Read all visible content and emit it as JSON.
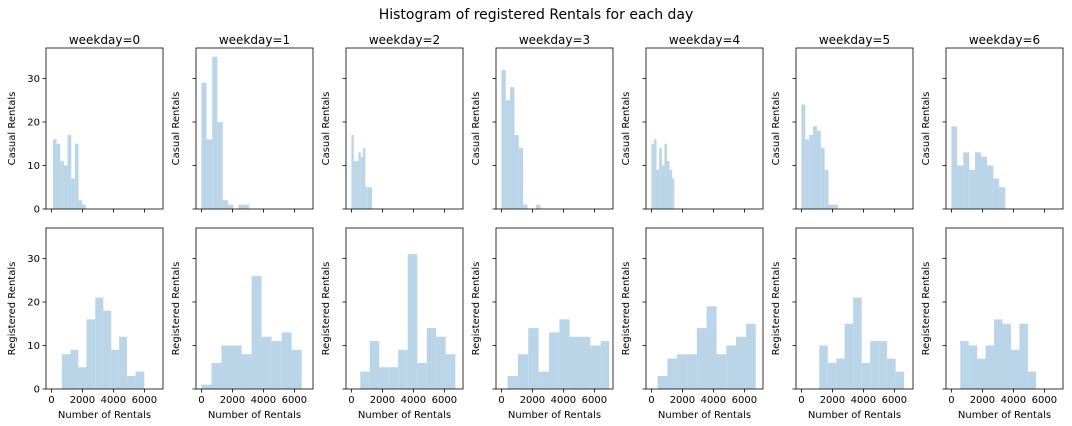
{
  "figure": {
    "title": "Histogram of registered Rentals for each day",
    "bar_color": "#bad4e8"
  },
  "chart_data": [
    {
      "type": "bar",
      "row": "casual",
      "title": "weekday=0",
      "ylabel": "Casual Rentals",
      "xlim": [
        -350,
        7200
      ],
      "ylim": [
        0,
        37
      ],
      "xticks": [
        0,
        2000,
        4000,
        6000
      ],
      "yticks": [
        0,
        10,
        20,
        30
      ],
      "bins": [
        [
          100,
          330,
          16
        ],
        [
          330,
          570,
          15
        ],
        [
          570,
          800,
          11
        ],
        [
          800,
          1040,
          10
        ],
        [
          1040,
          1280,
          17
        ],
        [
          1280,
          1510,
          7
        ],
        [
          1510,
          1750,
          15
        ],
        [
          1750,
          1990,
          2
        ],
        [
          1990,
          2220,
          1
        ]
      ]
    },
    {
      "type": "bar",
      "row": "casual",
      "title": "weekday=1",
      "ylabel": "Casual Rentals",
      "xlim": [
        -350,
        7200
      ],
      "ylim": [
        0,
        37
      ],
      "xticks": [
        0,
        2000,
        4000,
        6000
      ],
      "yticks": [
        0,
        10,
        20,
        30
      ],
      "bins": [
        [
          0,
          330,
          29
        ],
        [
          330,
          700,
          16
        ],
        [
          700,
          1030,
          35
        ],
        [
          1030,
          1380,
          20
        ],
        [
          1380,
          1710,
          2
        ],
        [
          1710,
          2060,
          1
        ],
        [
          2060,
          2390,
          0
        ],
        [
          2390,
          2740,
          1
        ],
        [
          2740,
          3080,
          1
        ]
      ]
    },
    {
      "type": "bar",
      "row": "casual",
      "title": "weekday=2",
      "ylabel": "Casual Rentals",
      "xlim": [
        -350,
        7200
      ],
      "ylim": [
        0,
        37
      ],
      "xticks": [
        0,
        2000,
        4000,
        6000
      ],
      "yticks": [
        0,
        10,
        20,
        30
      ],
      "bins": [
        [
          0,
          150,
          17
        ],
        [
          150,
          300,
          11
        ],
        [
          300,
          450,
          11
        ],
        [
          450,
          600,
          13
        ],
        [
          600,
          750,
          12
        ],
        [
          750,
          900,
          14
        ],
        [
          900,
          1050,
          5
        ],
        [
          1050,
          1200,
          5
        ],
        [
          1200,
          1330,
          5
        ]
      ]
    },
    {
      "type": "bar",
      "row": "casual",
      "title": "weekday=3",
      "ylabel": "Casual Rentals",
      "xlim": [
        -350,
        7200
      ],
      "ylim": [
        0,
        37
      ],
      "xticks": [
        0,
        2000,
        4000,
        6000
      ],
      "yticks": [
        0,
        10,
        20,
        30
      ],
      "bins": [
        [
          0,
          280,
          32
        ],
        [
          280,
          560,
          25
        ],
        [
          560,
          840,
          28
        ],
        [
          840,
          1120,
          17
        ],
        [
          1120,
          1400,
          14
        ],
        [
          1400,
          1680,
          1
        ],
        [
          1680,
          1960,
          0
        ],
        [
          1960,
          2240,
          0
        ],
        [
          2240,
          2520,
          1
        ]
      ]
    },
    {
      "type": "bar",
      "row": "casual",
      "title": "weekday=4",
      "ylabel": "Casual Rentals",
      "xlim": [
        -350,
        7200
      ],
      "ylim": [
        0,
        37
      ],
      "xticks": [
        0,
        2000,
        4000,
        6000
      ],
      "yticks": [
        0,
        10,
        20,
        30
      ],
      "bins": [
        [
          0,
          170,
          15
        ],
        [
          170,
          330,
          16
        ],
        [
          330,
          500,
          9
        ],
        [
          500,
          670,
          14
        ],
        [
          670,
          840,
          10
        ],
        [
          840,
          1000,
          15
        ],
        [
          1000,
          1170,
          11
        ],
        [
          1170,
          1340,
          9
        ],
        [
          1340,
          1480,
          7
        ]
      ]
    },
    {
      "type": "bar",
      "row": "casual",
      "title": "weekday=5",
      "ylabel": "Casual Rentals",
      "xlim": [
        -350,
        7200
      ],
      "ylim": [
        0,
        37
      ],
      "xticks": [
        0,
        2000,
        4000,
        6000
      ],
      "yticks": [
        0,
        10,
        20,
        30
      ],
      "bins": [
        [
          0,
          250,
          24
        ],
        [
          250,
          500,
          16
        ],
        [
          500,
          750,
          17
        ],
        [
          750,
          1000,
          19
        ],
        [
          1000,
          1250,
          18
        ],
        [
          1250,
          1500,
          14
        ],
        [
          1500,
          1750,
          9
        ],
        [
          1750,
          2000,
          1
        ],
        [
          2000,
          2350,
          1
        ]
      ]
    },
    {
      "type": "bar",
      "row": "casual",
      "title": "weekday=6",
      "ylabel": "Casual Rentals",
      "xlim": [
        -350,
        7200
      ],
      "ylim": [
        0,
        37
      ],
      "xticks": [
        0,
        2000,
        4000,
        6000
      ],
      "yticks": [
        0,
        10,
        20,
        30
      ],
      "bins": [
        [
          0,
          360,
          19
        ],
        [
          360,
          760,
          10
        ],
        [
          760,
          1150,
          13
        ],
        [
          1150,
          1520,
          9
        ],
        [
          1520,
          1910,
          13
        ],
        [
          1910,
          2300,
          12
        ],
        [
          2300,
          2700,
          10
        ],
        [
          2700,
          3080,
          7
        ],
        [
          3080,
          3480,
          5
        ]
      ]
    },
    {
      "type": "bar",
      "row": "registered",
      "title": "",
      "ylabel": "Registered Rentals",
      "xlabel": "Number of Rentals",
      "xlim": [
        -350,
        7200
      ],
      "ylim": [
        0,
        37
      ],
      "xticks": [
        0,
        2000,
        4000,
        6000
      ],
      "yticks": [
        0,
        10,
        20,
        30
      ],
      "bins": [
        [
          670,
          1230,
          8
        ],
        [
          1230,
          1740,
          9
        ],
        [
          1740,
          2260,
          5
        ],
        [
          2260,
          2830,
          16
        ],
        [
          2830,
          3350,
          21
        ],
        [
          3350,
          3860,
          18
        ],
        [
          3860,
          4370,
          9
        ],
        [
          4370,
          4880,
          12
        ],
        [
          4880,
          5430,
          3
        ],
        [
          5430,
          5990,
          4
        ]
      ]
    },
    {
      "type": "bar",
      "row": "registered",
      "title": "",
      "ylabel": "Registered Rentals",
      "xlabel": "Number of Rentals",
      "xlim": [
        -350,
        7200
      ],
      "ylim": [
        0,
        37
      ],
      "xticks": [
        0,
        2000,
        4000,
        6000
      ],
      "yticks": [
        0,
        10,
        20,
        30
      ],
      "bins": [
        [
          0,
          650,
          1
        ],
        [
          650,
          1290,
          6
        ],
        [
          1290,
          1940,
          10
        ],
        [
          1940,
          2590,
          10
        ],
        [
          2590,
          3240,
          8
        ],
        [
          3240,
          3880,
          26
        ],
        [
          3880,
          4530,
          12
        ],
        [
          4530,
          5180,
          11
        ],
        [
          5180,
          5820,
          13
        ],
        [
          5820,
          6470,
          9
        ]
      ]
    },
    {
      "type": "bar",
      "row": "registered",
      "title": "",
      "ylabel": "Registered Rentals",
      "xlabel": "Number of Rentals",
      "xlim": [
        -350,
        7200
      ],
      "ylim": [
        0,
        37
      ],
      "xticks": [
        0,
        2000,
        4000,
        6000
      ],
      "yticks": [
        0,
        10,
        20,
        30
      ],
      "bins": [
        [
          570,
          1180,
          4
        ],
        [
          1180,
          1790,
          11
        ],
        [
          1790,
          2410,
          5
        ],
        [
          2410,
          3020,
          5
        ],
        [
          3020,
          3630,
          9
        ],
        [
          3630,
          4250,
          31
        ],
        [
          4250,
          4860,
          6
        ],
        [
          4860,
          5470,
          14
        ],
        [
          5470,
          6080,
          12
        ],
        [
          6080,
          6710,
          8
        ]
      ]
    },
    {
      "type": "bar",
      "row": "registered",
      "title": "",
      "ylabel": "Registered Rentals",
      "xlabel": "Number of Rentals",
      "xlim": [
        -350,
        7200
      ],
      "ylim": [
        0,
        37
      ],
      "xticks": [
        0,
        2000,
        4000,
        6000
      ],
      "yticks": [
        0,
        10,
        20,
        30
      ],
      "bins": [
        [
          400,
          1060,
          3
        ],
        [
          1060,
          1730,
          8
        ],
        [
          1730,
          2400,
          14
        ],
        [
          2400,
          3070,
          4
        ],
        [
          3070,
          3740,
          13
        ],
        [
          3740,
          4400,
          16
        ],
        [
          4400,
          5070,
          12
        ],
        [
          5070,
          5740,
          12
        ],
        [
          5740,
          6400,
          10
        ],
        [
          6400,
          6960,
          11
        ]
      ]
    },
    {
      "type": "bar",
      "row": "registered",
      "title": "",
      "ylabel": "Registered Rentals",
      "xlabel": "Number of Rentals",
      "xlim": [
        -350,
        7200
      ],
      "ylim": [
        0,
        37
      ],
      "xticks": [
        0,
        2000,
        4000,
        6000
      ],
      "yticks": [
        0,
        10,
        20,
        30
      ],
      "bins": [
        [
          400,
          1030,
          3
        ],
        [
          1030,
          1660,
          7
        ],
        [
          1660,
          2300,
          8
        ],
        [
          2300,
          2930,
          8
        ],
        [
          2930,
          3560,
          14
        ],
        [
          3560,
          4200,
          19
        ],
        [
          4200,
          4830,
          8
        ],
        [
          4830,
          5460,
          10
        ],
        [
          5460,
          6100,
          12
        ],
        [
          6100,
          6730,
          15
        ]
      ]
    },
    {
      "type": "bar",
      "row": "registered",
      "title": "",
      "ylabel": "Registered Rentals",
      "xlabel": "Number of Rentals",
      "xlim": [
        -350,
        7200
      ],
      "ylim": [
        0,
        37
      ],
      "xticks": [
        0,
        2000,
        4000,
        6000
      ],
      "yticks": [
        0,
        10,
        20,
        30
      ],
      "bins": [
        [
          1150,
          1700,
          10
        ],
        [
          1700,
          2250,
          6
        ],
        [
          2250,
          2790,
          7
        ],
        [
          2790,
          3340,
          15
        ],
        [
          3340,
          3890,
          21
        ],
        [
          3890,
          4440,
          6
        ],
        [
          4440,
          4990,
          11
        ],
        [
          4990,
          5530,
          11
        ],
        [
          5530,
          6080,
          7
        ],
        [
          6080,
          6630,
          4
        ]
      ]
    },
    {
      "type": "bar",
      "row": "registered",
      "title": "",
      "ylabel": "Registered Rentals",
      "xlabel": "Number of Rentals",
      "xlim": [
        -350,
        7200
      ],
      "ylim": [
        0,
        37
      ],
      "xticks": [
        0,
        2000,
        4000,
        6000
      ],
      "yticks": [
        0,
        10,
        20,
        30
      ],
      "bins": [
        [
          570,
          1110,
          11
        ],
        [
          1110,
          1660,
          10
        ],
        [
          1660,
          2200,
          7
        ],
        [
          2200,
          2750,
          10
        ],
        [
          2750,
          3290,
          16
        ],
        [
          3290,
          3840,
          15
        ],
        [
          3840,
          4390,
          9
        ],
        [
          4390,
          4930,
          15
        ],
        [
          4930,
          5460,
          4
        ]
      ]
    }
  ]
}
